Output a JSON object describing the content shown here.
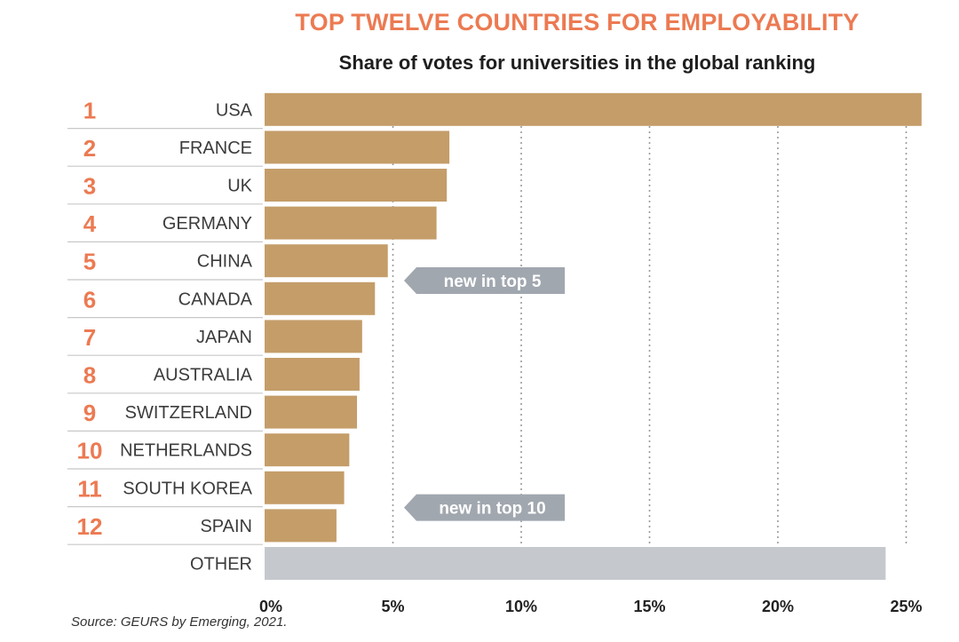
{
  "title": "TOP TWELVE COUNTRIES FOR EMPLOYABILITY",
  "subtitle": "Share of votes for universities in the global ranking",
  "source": "Source: GEURS by Emerging, 2021.",
  "colors": {
    "bar": "#c49d69",
    "other_bar": "#c5c9ce",
    "rank_text": "#ec7a52",
    "title": "#ec7a52",
    "callout": "#a1a7af"
  },
  "chart_data": {
    "type": "bar",
    "orientation": "horizontal",
    "title": "TOP TWELVE COUNTRIES FOR EMPLOYABILITY",
    "subtitle": "Share of votes for universities in the global ranking",
    "ranks": [
      "1",
      "2",
      "3",
      "4",
      "5",
      "6",
      "7",
      "8",
      "9",
      "10",
      "11",
      "12",
      ""
    ],
    "categories": [
      "USA",
      "FRANCE",
      "UK",
      "GERMANY",
      "CHINA",
      "CANADA",
      "JAPAN",
      "AUSTRALIA",
      "SWITZERLAND",
      "NETHERLANDS",
      "SOUTH KOREA",
      "SPAIN",
      "OTHER"
    ],
    "values": [
      25.6,
      7.2,
      7.1,
      6.7,
      4.8,
      4.3,
      3.8,
      3.7,
      3.6,
      3.3,
      3.1,
      2.8,
      24.2
    ],
    "xlim": [
      0,
      25
    ],
    "xticks": [
      "0%",
      "5%",
      "10%",
      "15%",
      "20%",
      "25%"
    ],
    "tick_values": [
      0,
      5,
      10,
      15,
      20,
      25
    ],
    "grid": "vertical dotted",
    "annotations": [
      {
        "text": "new in top 5",
        "category": "CHINA"
      },
      {
        "text": "new in top 10",
        "category": "SOUTH KOREA"
      }
    ]
  }
}
